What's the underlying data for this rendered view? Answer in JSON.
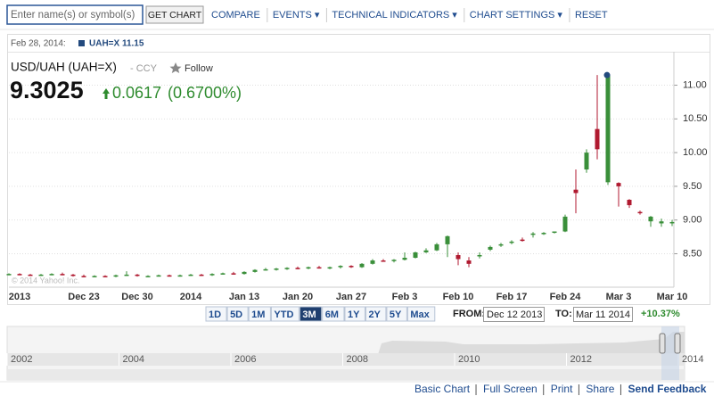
{
  "toolbar": {
    "search_placeholder": "Enter name(s) or symbol(s)",
    "button": "GET CHART",
    "links": [
      "COMPARE",
      "EVENTS ▾",
      "TECHNICAL INDICATORS ▾",
      "CHART SETTINGS ▾",
      "RESET"
    ]
  },
  "header": {
    "title": "USD/UAH (UAH=X)",
    "exchange": "- CCY",
    "follow": "Follow",
    "price": "9.3025",
    "change": "0.0617",
    "change_percent": "(0.6700%)",
    "hover_date": "Feb 28, 2014:",
    "hover_value": "UAH=X 11.15",
    "watermark": "© 2014 Yahoo! Inc."
  },
  "chart_data": {
    "type": "candlestick",
    "up_color": "#3a8f3a",
    "down_color": "#b01a30",
    "marker_color": "#234a7e",
    "highlight_index": 56,
    "categories": [
      null,
      "2013",
      null,
      null,
      null,
      null,
      null,
      "Dec 23",
      null,
      null,
      null,
      null,
      "Dec 30",
      null,
      null,
      null,
      null,
      "2014",
      null,
      null,
      null,
      null,
      "Jan 13",
      null,
      null,
      null,
      null,
      "Jan 20",
      null,
      null,
      null,
      null,
      "Jan 27",
      null,
      null,
      null,
      null,
      "Feb 3",
      null,
      null,
      null,
      null,
      "Feb 10",
      null,
      null,
      null,
      null,
      "Feb 17",
      null,
      null,
      null,
      null,
      "Feb 24",
      null,
      null,
      null,
      null,
      "Mar 3",
      null,
      null,
      null,
      null,
      "Mar 10"
    ],
    "open": [
      8.19,
      8.2,
      8.19,
      8.18,
      8.19,
      8.2,
      8.19,
      8.17,
      8.16,
      8.17,
      8.16,
      8.18,
      8.19,
      8.17,
      8.17,
      8.18,
      8.17,
      8.18,
      8.19,
      8.18,
      8.2,
      8.21,
      8.2,
      8.23,
      8.26,
      8.27,
      8.28,
      8.29,
      8.28,
      8.3,
      8.29,
      8.3,
      8.32,
      8.3,
      8.35,
      8.4,
      8.39,
      8.41,
      8.44,
      8.52,
      8.55,
      8.64,
      8.48,
      8.4,
      8.46,
      8.56,
      8.62,
      8.66,
      8.71,
      8.78,
      8.79,
      8.82,
      8.83,
      9.45,
      9.75,
      10.35,
      9.56,
      9.55,
      9.3,
      9.12,
      8.98,
      8.95,
      8.95
    ],
    "high": [
      8.21,
      8.21,
      8.2,
      8.2,
      8.21,
      8.22,
      8.2,
      8.19,
      8.18,
      8.18,
      8.19,
      8.24,
      8.2,
      8.18,
      8.19,
      8.19,
      8.19,
      8.2,
      8.2,
      8.21,
      8.22,
      8.23,
      8.24,
      8.27,
      8.29,
      8.29,
      8.3,
      8.31,
      8.31,
      8.32,
      8.31,
      8.33,
      8.33,
      8.36,
      8.42,
      8.42,
      8.42,
      8.52,
      8.53,
      8.58,
      8.66,
      8.77,
      8.52,
      8.45,
      8.52,
      8.62,
      8.66,
      8.7,
      8.74,
      8.82,
      8.82,
      8.83,
      9.08,
      9.75,
      10.05,
      11.15,
      11.15,
      9.56,
      9.31,
      9.14,
      9.06,
      9.02,
      9.0
    ],
    "low": [
      8.18,
      8.18,
      8.17,
      8.17,
      8.18,
      8.18,
      8.16,
      8.15,
      8.15,
      8.15,
      8.15,
      8.17,
      8.16,
      8.16,
      8.16,
      8.16,
      8.16,
      8.17,
      8.17,
      8.17,
      8.19,
      8.19,
      8.19,
      8.22,
      8.25,
      8.25,
      8.26,
      8.27,
      8.27,
      8.28,
      8.27,
      8.28,
      8.29,
      8.29,
      8.34,
      8.38,
      8.37,
      8.4,
      8.43,
      8.51,
      8.54,
      8.45,
      8.33,
      8.3,
      8.43,
      8.54,
      8.6,
      8.64,
      8.68,
      8.74,
      8.78,
      8.8,
      8.82,
      9.1,
      9.7,
      9.9,
      9.52,
      9.2,
      9.18,
      9.08,
      8.9,
      8.9,
      8.91
    ],
    "close": [
      8.2,
      8.19,
      8.18,
      8.19,
      8.2,
      8.19,
      8.17,
      8.16,
      8.17,
      8.16,
      8.18,
      8.19,
      8.17,
      8.17,
      8.18,
      8.17,
      8.18,
      8.19,
      8.18,
      8.2,
      8.21,
      8.2,
      8.23,
      8.26,
      8.27,
      8.28,
      8.29,
      8.28,
      8.3,
      8.29,
      8.3,
      8.32,
      8.3,
      8.35,
      8.4,
      8.39,
      8.41,
      8.44,
      8.52,
      8.55,
      8.64,
      8.76,
      8.42,
      8.35,
      8.48,
      8.6,
      8.64,
      8.68,
      8.7,
      8.8,
      8.81,
      8.83,
      9.05,
      9.4,
      10.0,
      10.05,
      11.15,
      9.5,
      9.22,
      9.1,
      9.05,
      8.98,
      8.97
    ],
    "ylim": [
      8.03,
      11.47
    ],
    "yticks": [
      {
        "value": 8.5,
        "label": "8.50"
      },
      {
        "value": 9,
        "label": "9.00"
      },
      {
        "value": 9.5,
        "label": "9.50"
      },
      {
        "value": 10,
        "label": "10.00"
      },
      {
        "value": 10.5,
        "label": "10.50"
      },
      {
        "value": 11,
        "label": "11.00"
      }
    ],
    "grid": true
  },
  "range": {
    "buttons": [
      "1D",
      "5D",
      "1M",
      "YTD",
      "3M",
      "6M",
      "1Y",
      "2Y",
      "5Y",
      "Max"
    ],
    "active_index": 4,
    "from_label": "FROM:",
    "from": "Dec 12 2013",
    "to_label": "TO:",
    "to": "Mar 11 2014",
    "change": "+10.37%"
  },
  "navigator": {
    "years": [
      "2002",
      "2004",
      "2006",
      "2008",
      "2010",
      "2012",
      "2014"
    ]
  },
  "footer": {
    "links": [
      "Basic Chart",
      "Full Screen",
      "Print",
      "Share",
      "Send Feedback"
    ]
  }
}
